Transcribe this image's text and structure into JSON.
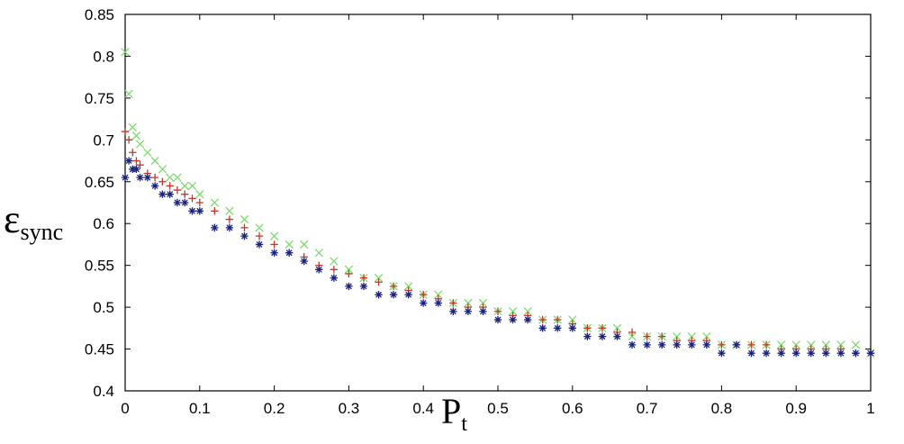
{
  "chart_data": {
    "type": "scatter",
    "title": "",
    "xlabel": "P",
    "xlabel_sub": "t",
    "ylabel": "ε",
    "ylabel_sub": "sync",
    "xlim": [
      0,
      1
    ],
    "ylim": [
      0.4,
      0.85
    ],
    "xticks": [
      "0",
      "0.1",
      "0.2",
      "0.3",
      "0.4",
      "0.5",
      "0.6",
      "0.7",
      "0.8",
      "0.9",
      "1"
    ],
    "yticks": [
      "0.4",
      "0.45",
      "0.5",
      "0.55",
      "0.6",
      "0.65",
      "0.7",
      "0.75",
      "0.8",
      "0.85"
    ],
    "grid": false,
    "legend": "none",
    "series": [
      {
        "color": "#7ddc6e",
        "marker": "x",
        "x": [
          0,
          0.005,
          0.01,
          0.015,
          0.02,
          0.03,
          0.04,
          0.05,
          0.06,
          0.07,
          0.08,
          0.09,
          0.1,
          0.12,
          0.14,
          0.16,
          0.18,
          0.2,
          0.22,
          0.24,
          0.26,
          0.28,
          0.3,
          0.32,
          0.34,
          0.36,
          0.38,
          0.4,
          0.42,
          0.44,
          0.46,
          0.48,
          0.5,
          0.52,
          0.54,
          0.56,
          0.58,
          0.6,
          0.62,
          0.64,
          0.66,
          0.68,
          0.7,
          0.72,
          0.74,
          0.76,
          0.78,
          0.8,
          0.82,
          0.84,
          0.86,
          0.88,
          0.9,
          0.92,
          0.94,
          0.96,
          0.98,
          1.0
        ],
        "y": [
          0.805,
          0.755,
          0.715,
          0.705,
          0.695,
          0.685,
          0.675,
          0.665,
          0.655,
          0.655,
          0.645,
          0.645,
          0.635,
          0.625,
          0.615,
          0.605,
          0.595,
          0.585,
          0.575,
          0.575,
          0.565,
          0.555,
          0.545,
          0.535,
          0.535,
          0.525,
          0.525,
          0.515,
          0.515,
          0.505,
          0.505,
          0.505,
          0.495,
          0.495,
          0.495,
          0.485,
          0.485,
          0.485,
          0.475,
          0.475,
          0.475,
          0.465,
          0.465,
          0.465,
          0.465,
          0.465,
          0.465,
          0.455,
          0.455,
          0.455,
          0.455,
          0.455,
          0.455,
          0.455,
          0.455,
          0.455,
          0.455,
          0.445
        ]
      },
      {
        "color": "#c0392b",
        "marker": "+",
        "x": [
          0,
          0.005,
          0.01,
          0.015,
          0.02,
          0.03,
          0.04,
          0.05,
          0.06,
          0.07,
          0.08,
          0.09,
          0.1,
          0.12,
          0.14,
          0.16,
          0.18,
          0.2,
          0.22,
          0.24,
          0.26,
          0.28,
          0.3,
          0.32,
          0.34,
          0.36,
          0.38,
          0.4,
          0.42,
          0.44,
          0.46,
          0.48,
          0.5,
          0.52,
          0.54,
          0.56,
          0.58,
          0.6,
          0.62,
          0.64,
          0.66,
          0.68,
          0.7,
          0.72,
          0.74,
          0.76,
          0.78,
          0.8,
          0.82,
          0.84,
          0.86,
          0.88,
          0.9,
          0.92,
          0.94,
          0.96,
          0.98,
          1.0
        ],
        "y": [
          0.71,
          0.7,
          0.685,
          0.675,
          0.67,
          0.66,
          0.655,
          0.65,
          0.645,
          0.64,
          0.635,
          0.63,
          0.625,
          0.615,
          0.605,
          0.595,
          0.585,
          0.575,
          0.565,
          0.56,
          0.55,
          0.545,
          0.54,
          0.535,
          0.53,
          0.525,
          0.52,
          0.515,
          0.51,
          0.505,
          0.5,
          0.5,
          0.495,
          0.49,
          0.49,
          0.485,
          0.485,
          0.48,
          0.475,
          0.475,
          0.47,
          0.47,
          0.465,
          0.465,
          0.46,
          0.46,
          0.46,
          0.455,
          0.455,
          0.455,
          0.455,
          0.45,
          0.45,
          0.45,
          0.45,
          0.45,
          0.445,
          0.445
        ]
      },
      {
        "color": "#1a237e",
        "marker": "*",
        "x": [
          0,
          0.005,
          0.01,
          0.015,
          0.02,
          0.03,
          0.04,
          0.05,
          0.06,
          0.07,
          0.08,
          0.09,
          0.1,
          0.12,
          0.14,
          0.16,
          0.18,
          0.2,
          0.22,
          0.24,
          0.26,
          0.28,
          0.3,
          0.32,
          0.34,
          0.36,
          0.38,
          0.4,
          0.42,
          0.44,
          0.46,
          0.48,
          0.5,
          0.52,
          0.54,
          0.56,
          0.58,
          0.6,
          0.62,
          0.64,
          0.66,
          0.68,
          0.7,
          0.72,
          0.74,
          0.76,
          0.78,
          0.8,
          0.82,
          0.84,
          0.86,
          0.88,
          0.9,
          0.92,
          0.94,
          0.96,
          0.98,
          1.0
        ],
        "y": [
          0.655,
          0.675,
          0.665,
          0.665,
          0.655,
          0.655,
          0.645,
          0.635,
          0.635,
          0.625,
          0.625,
          0.615,
          0.615,
          0.595,
          0.595,
          0.585,
          0.575,
          0.565,
          0.565,
          0.555,
          0.545,
          0.535,
          0.525,
          0.525,
          0.515,
          0.515,
          0.515,
          0.505,
          0.505,
          0.495,
          0.495,
          0.495,
          0.485,
          0.485,
          0.485,
          0.475,
          0.475,
          0.475,
          0.465,
          0.465,
          0.465,
          0.455,
          0.455,
          0.455,
          0.455,
          0.455,
          0.455,
          0.445,
          0.455,
          0.445,
          0.445,
          0.445,
          0.445,
          0.445,
          0.445,
          0.445,
          0.445,
          0.445
        ]
      }
    ]
  }
}
